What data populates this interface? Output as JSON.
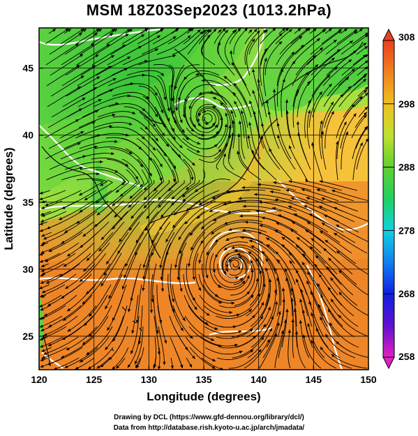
{
  "title": "MSM 18Z03Sep2023 (1013.2hPa)",
  "x_axis": {
    "label": "Longitude (degrees)",
    "ticks": [
      "120",
      "125",
      "130",
      "135",
      "140",
      "145",
      "150"
    ]
  },
  "y_axis": {
    "label": "Latitude  (degrees)",
    "ticks": [
      "25",
      "30",
      "35",
      "40",
      "45"
    ]
  },
  "colorbar": {
    "labels": [
      "308",
      "298",
      "288",
      "278",
      "268",
      "258"
    ]
  },
  "colors": {
    "ocean_warm": "#f08a28",
    "ocean_mid": "#f5b830",
    "land_cool": "#40d040",
    "land_mid": "#90e040",
    "contour": "#ffffff",
    "streamline": "#000000"
  },
  "credits": {
    "line1": "Drawing by DCL (https://www.gfd-dennou.org/library/dcl/)",
    "line2": "Data from http://database.rish.kyoto-u.ac.jp/arch/jmadata/"
  }
}
